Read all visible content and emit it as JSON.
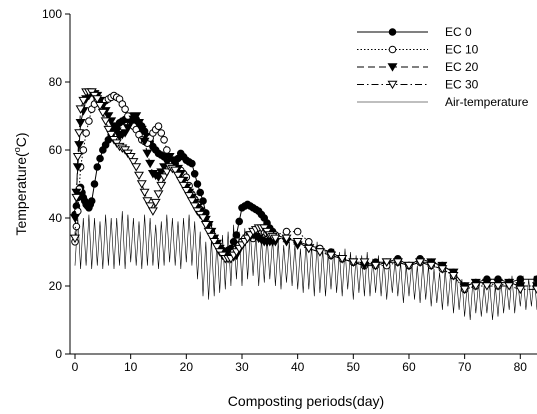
{
  "chart_data": {
    "type": "line",
    "title": "",
    "xlabel": "Composting periods(day)",
    "ylabel": "Temperature(",
    "ylabel_sup": "o",
    "ylabel_suffix": "C)",
    "xlim": [
      0,
      83
    ],
    "ylim": [
      0,
      100
    ],
    "xticks": [
      0,
      10,
      20,
      30,
      40,
      50,
      60,
      70,
      80
    ],
    "yticks": [
      0,
      20,
      40,
      60,
      80,
      100
    ],
    "grid": false,
    "legend_position": "top-right",
    "series": [
      {
        "name": "EC 0",
        "marker": "filled-circle",
        "dash": "solid",
        "x": [
          0,
          0.5,
          1,
          1.5,
          2,
          2.5,
          3,
          4,
          5,
          6,
          7,
          8,
          9,
          10,
          11,
          12,
          13,
          14,
          15,
          16,
          17,
          18,
          19,
          20,
          21,
          22,
          23,
          24,
          25,
          26,
          27,
          28,
          29,
          30,
          31,
          32,
          33,
          34,
          35,
          36,
          38,
          40,
          42,
          44,
          46,
          48,
          50,
          52,
          54,
          56,
          58,
          60,
          62,
          64,
          66,
          68,
          70,
          72,
          74,
          76,
          78,
          80,
          83
        ],
        "y": [
          41,
          46,
          49,
          46,
          44,
          43,
          45,
          55,
          60,
          63,
          66,
          68,
          69,
          70,
          69,
          67,
          64,
          61,
          59,
          58,
          57,
          56,
          59,
          57,
          56,
          50,
          45,
          38,
          34,
          31,
          30,
          31,
          35,
          43,
          44,
          43,
          42,
          40,
          37,
          35,
          34,
          33,
          32,
          31,
          30,
          28,
          27,
          26,
          27,
          27,
          28,
          26,
          28,
          27,
          26,
          24,
          20,
          21,
          22,
          22,
          21,
          22,
          22
        ]
      },
      {
        "name": "EC 10",
        "marker": "open-circle",
        "dash": "dotted",
        "x": [
          0,
          0.5,
          1,
          2,
          3,
          4,
          5,
          6,
          7,
          8,
          9,
          10,
          11,
          12,
          13,
          14,
          15,
          16,
          17,
          18,
          19,
          20,
          21,
          22,
          23,
          24,
          25,
          26,
          27,
          28,
          29,
          30,
          31,
          32,
          33,
          34,
          35,
          36,
          38,
          40,
          42,
          44,
          46,
          48,
          50,
          52,
          54,
          56,
          58,
          60,
          62,
          64,
          66,
          68,
          70,
          72,
          74,
          76,
          78,
          80,
          83
        ],
        "y": [
          33,
          42,
          55,
          65,
          72,
          75,
          74,
          75,
          76,
          75,
          72,
          68,
          66,
          63,
          62,
          65,
          67,
          63,
          57,
          55,
          54,
          52,
          47,
          44,
          41,
          37,
          34,
          31,
          29,
          29,
          31,
          33,
          35,
          34,
          36,
          36,
          35,
          35,
          36,
          36,
          33,
          31,
          29,
          28,
          27,
          26,
          26,
          26,
          27,
          26,
          27,
          26,
          25,
          23,
          19,
          20,
          21,
          20,
          21,
          20,
          20
        ]
      },
      {
        "name": "EC 20",
        "marker": "filled-triangle-down",
        "dash": "dashed",
        "x": [
          0,
          0.5,
          1,
          2,
          3,
          4,
          5,
          6,
          7,
          8,
          9,
          10,
          11,
          12,
          13,
          14,
          15,
          16,
          17,
          18,
          19,
          20,
          21,
          22,
          23,
          24,
          25,
          26,
          27,
          28,
          29,
          30,
          31,
          32,
          33,
          34,
          35,
          36,
          38,
          40,
          42,
          44,
          46,
          48,
          50,
          52,
          54,
          56,
          58,
          60,
          62,
          64,
          66,
          68,
          70,
          72,
          74,
          76,
          78,
          80,
          83
        ],
        "y": [
          40,
          55,
          68,
          75,
          77,
          76,
          73,
          70,
          67,
          64,
          65,
          68,
          70,
          66,
          59,
          53,
          52,
          55,
          58,
          56,
          53,
          49,
          46,
          43,
          41,
          38,
          34,
          31,
          29,
          28,
          29,
          32,
          34,
          35,
          34,
          33,
          33,
          33,
          33,
          32,
          31,
          30,
          29,
          28,
          27,
          26,
          26,
          27,
          27,
          26,
          27,
          27,
          26,
          24,
          20,
          21,
          21,
          21,
          21,
          20,
          20
        ]
      },
      {
        "name": "EC 30",
        "marker": "open-triangle-down",
        "dash": "dash-dot",
        "x": [
          0,
          0.5,
          1,
          2,
          3,
          4,
          5,
          6,
          7,
          8,
          9,
          10,
          11,
          12,
          13,
          14,
          15,
          16,
          17,
          18,
          19,
          20,
          21,
          22,
          23,
          24,
          25,
          26,
          27,
          28,
          29,
          30,
          31,
          32,
          33,
          34,
          35,
          36,
          38,
          40,
          42,
          44,
          46,
          48,
          50,
          52,
          54,
          56,
          58,
          60,
          62,
          64,
          66,
          68,
          70,
          72,
          74,
          76,
          78,
          80,
          83
        ],
        "y": [
          34,
          58,
          72,
          77,
          77,
          75,
          71,
          66,
          63,
          61,
          60,
          58,
          55,
          50,
          45,
          42,
          47,
          52,
          55,
          54,
          51,
          48,
          45,
          42,
          40,
          36,
          33,
          30,
          28,
          28,
          30,
          32,
          34,
          36,
          37,
          37,
          35,
          34,
          34,
          33,
          31,
          30,
          29,
          28,
          27,
          27,
          26,
          27,
          27,
          26,
          27,
          26,
          25,
          23,
          19,
          20,
          20,
          20,
          20,
          19,
          19
        ]
      },
      {
        "name": "Air-temperature",
        "marker": "none",
        "dash": "thin-solid",
        "x": [
          0,
          0.5,
          1,
          1.5,
          2,
          2.5,
          3,
          3.5,
          4,
          4.5,
          5,
          5.5,
          6,
          6.5,
          7,
          7.5,
          8,
          8.5,
          9,
          9.5,
          10,
          10.5,
          11,
          11.5,
          12,
          12.5,
          13,
          13.5,
          14,
          14.5,
          15,
          15.5,
          16,
          16.5,
          17,
          17.5,
          18,
          18.5,
          19,
          19.5,
          20,
          20.5,
          21,
          21.5,
          22,
          22.5,
          23,
          23.5,
          24,
          24.5,
          25,
          25.5,
          26,
          26.5,
          27,
          27.5,
          28,
          28.5,
          29,
          29.5,
          30,
          30.5,
          31,
          31.5,
          32,
          32.5,
          33,
          33.5,
          34,
          34.5,
          35,
          35.5,
          36,
          36.5,
          37,
          37.5,
          38,
          38.5,
          39,
          39.5,
          40,
          40.5,
          41,
          41.5,
          42,
          42.5,
          43,
          43.5,
          44,
          44.5,
          45,
          45.5,
          46,
          46.5,
          47,
          47.5,
          48,
          48.5,
          49,
          49.5,
          50,
          50.5,
          51,
          51.5,
          52,
          52.5,
          53,
          53.5,
          54,
          54.5,
          55,
          55.5,
          56,
          56.5,
          57,
          57.5,
          58,
          58.5,
          59,
          59.5,
          60,
          60.5,
          61,
          61.5,
          62,
          62.5,
          63,
          63.5,
          64,
          64.5,
          65,
          65.5,
          66,
          66.5,
          67,
          67.5,
          68,
          68.5,
          69,
          69.5,
          70,
          70.5,
          71,
          71.5,
          72,
          72.5,
          73,
          73.5,
          74,
          74.5,
          75,
          75.5,
          76,
          76.5,
          77,
          77.5,
          78,
          78.5,
          79,
          79.5,
          80,
          80.5,
          81,
          81.5,
          82,
          82.5,
          83
        ],
        "y": [
          26,
          40,
          25,
          40,
          26,
          41,
          25,
          40,
          26,
          39,
          25,
          41,
          26,
          40,
          25,
          40,
          26,
          42,
          25,
          41,
          27,
          40,
          26,
          39,
          25,
          41,
          26,
          40,
          26,
          38,
          25,
          39,
          26,
          41,
          27,
          40,
          26,
          39,
          25,
          40,
          27,
          41,
          26,
          39,
          22,
          36,
          17,
          33,
          16,
          34,
          17,
          33,
          18,
          35,
          19,
          36,
          20,
          38,
          22,
          36,
          20,
          37,
          22,
          36,
          23,
          35,
          20,
          34,
          21,
          35,
          22,
          34,
          20,
          33,
          19,
          32,
          21,
          33,
          20,
          32,
          19,
          31,
          18,
          33,
          19,
          32,
          17,
          33,
          18,
          31,
          17,
          30,
          19,
          31,
          18,
          30,
          17,
          31,
          19,
          30,
          16,
          29,
          18,
          29,
          17,
          30,
          17,
          28,
          18,
          29,
          17,
          28,
          16,
          27,
          18,
          28,
          17,
          27,
          15,
          26,
          17,
          27,
          16,
          26,
          15,
          27,
          16,
          26,
          14,
          25,
          15,
          24,
          13,
          25,
          14,
          24,
          12,
          23,
          13,
          22,
          11,
          21,
          10,
          22,
          12,
          21,
          11,
          20,
          12,
          21,
          10,
          20,
          11,
          22,
          12,
          21,
          13,
          23,
          12,
          22,
          14,
          23,
          13,
          22,
          14,
          23,
          13
        ]
      }
    ]
  }
}
